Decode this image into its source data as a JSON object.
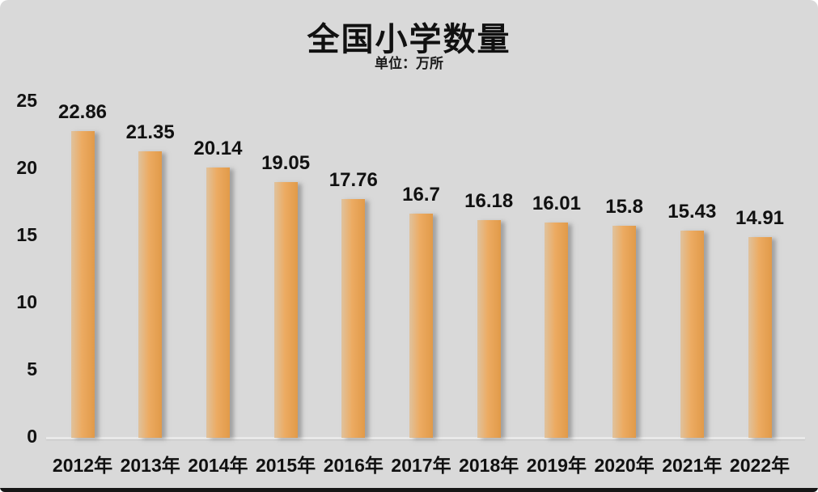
{
  "chart_data": {
    "type": "bar",
    "title": "全国小学数量",
    "unit_label": "单位：万所",
    "categories": [
      "2012年",
      "2013年",
      "2014年",
      "2015年",
      "2016年",
      "2017年",
      "2018年",
      "2019年",
      "2020年",
      "2021年",
      "2022年"
    ],
    "values": [
      22.86,
      21.35,
      20.14,
      19.05,
      17.76,
      16.7,
      16.18,
      16.01,
      15.8,
      15.43,
      14.91
    ],
    "value_labels": [
      "22.86",
      "21.35",
      "20.14",
      "19.05",
      "17.76",
      "16.7",
      "16.18",
      "16.01",
      "15.8",
      "15.43",
      "14.91"
    ],
    "yticks": [
      0,
      5,
      10,
      15,
      20,
      25
    ],
    "ylim": [
      0,
      25
    ],
    "xlabel": "",
    "ylabel": "",
    "grid": false,
    "legend": "none",
    "colors": {
      "background": "#d9d9d9",
      "bar_gradient_left": "#e0c29d",
      "bar_gradient_mid": "#ecab62",
      "bar_gradient_right": "#e19a49",
      "text": "#111111",
      "baseline": "#e9e9e9",
      "bottom_strip": "#161616"
    }
  }
}
